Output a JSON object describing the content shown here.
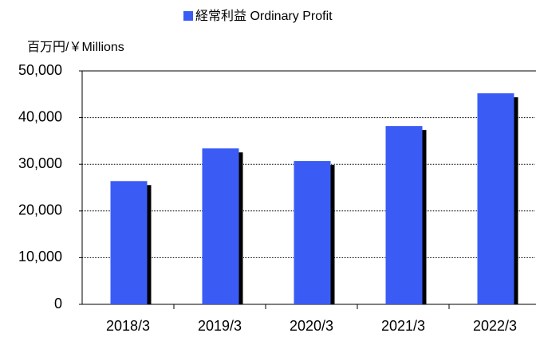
{
  "chart_data": {
    "type": "bar",
    "legend": "経常利益 Ordinary Profit",
    "y_axis_label": "百万円/￥Millions",
    "categories": [
      "2018/3",
      "2019/3",
      "2020/3",
      "2021/3",
      "2022/3"
    ],
    "series": [
      {
        "name": "経常利益 Ordinary Profit",
        "color": "#3a5cf4",
        "values": [
          26400,
          33400,
          30700,
          38200,
          45200
        ]
      }
    ],
    "ylim": [
      0,
      50000
    ],
    "yticks": [
      0,
      {
        "value": 10000,
        "label": "10,000"
      },
      {
        "value": 20000,
        "label": "20,000"
      },
      {
        "value": 30000,
        "label": "30,000"
      },
      {
        "value": 40000,
        "label": "40,000"
      },
      {
        "value": 50000,
        "label": "50,000"
      }
    ],
    "grid": true
  }
}
